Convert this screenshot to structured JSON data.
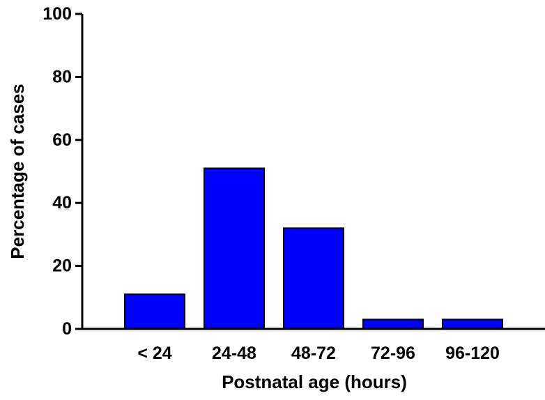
{
  "chart_data": {
    "type": "bar",
    "title": "",
    "xlabel": "Postnatal age (hours)",
    "ylabel": "Percentage of cases",
    "categories": [
      "< 24",
      "24-48",
      "48-72",
      "72-96",
      "96-120"
    ],
    "values": [
      11,
      51,
      32,
      3,
      3
    ],
    "ylim": [
      0,
      100
    ],
    "yticks": [
      0,
      20,
      40,
      60,
      80,
      100
    ],
    "grid": false,
    "legend": "none",
    "bar_color": "#0000ff",
    "bar_edge_color": "#000000",
    "axis_color": "#000000"
  }
}
